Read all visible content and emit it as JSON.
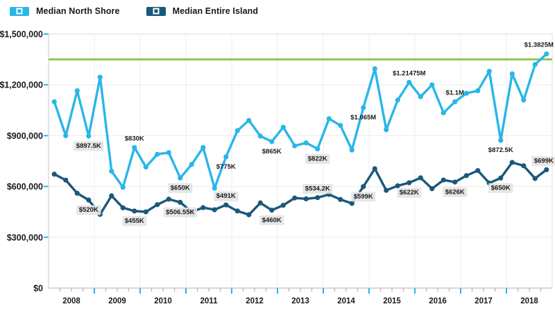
{
  "legend": {
    "items": [
      {
        "label": "Median North Shore",
        "color": "#29b6e8"
      },
      {
        "label": "Median Entire Island",
        "color": "#19587a"
      }
    ]
  },
  "chart_data": {
    "type": "line",
    "title": "",
    "x_axis": {
      "years": [
        "2008",
        "2009",
        "2010",
        "2011",
        "2012",
        "2013",
        "2014",
        "2015",
        "2016",
        "2017",
        "2018"
      ],
      "points_per_year": 4
    },
    "y_axis": {
      "min": 0,
      "max": 1500000,
      "ticks": [
        {
          "value": 0,
          "label": "$0"
        },
        {
          "value": 300000,
          "label": "$300,000"
        },
        {
          "value": 600000,
          "label": "$600,000"
        },
        {
          "value": 900000,
          "label": "$900,000"
        },
        {
          "value": 1200000,
          "label": "$1,200,000"
        },
        {
          "value": 1500000,
          "label": "$1,500,000"
        }
      ]
    },
    "reference_line": {
      "value": 1350000,
      "color": "#84c341"
    },
    "grid": true,
    "legend_position": "top-left",
    "series": [
      {
        "name": "Median North Shore",
        "color": "#29b6e8",
        "values": [
          1100000,
          900000,
          1165000,
          897500,
          1245000,
          690000,
          595000,
          830000,
          715000,
          790000,
          800000,
          650000,
          730000,
          830000,
          590000,
          775000,
          930000,
          990000,
          897500,
          865000,
          950000,
          840000,
          857500,
          822000,
          1000000,
          960000,
          815000,
          1065000,
          1295000,
          935000,
          1110000,
          1214750,
          1130000,
          1200000,
          1035000,
          1100000,
          1150000,
          1165000,
          1280000,
          872500,
          1265000,
          1110000,
          1320000,
          1382500
        ],
        "year_end_labels": [
          {
            "text": "$897.5K",
            "placement": "below",
            "chip": true
          },
          {
            "text": "$830K",
            "placement": "above",
            "chip": false
          },
          {
            "text": "$650K",
            "placement": "below",
            "chip": true
          },
          {
            "text": "$775K",
            "placement": "below",
            "chip": false
          },
          {
            "text": "$865K",
            "placement": "below",
            "chip": false
          },
          {
            "text": "$822K",
            "placement": "below",
            "chip": true
          },
          {
            "text": "$1.065M",
            "placement": "below",
            "chip": false
          },
          {
            "text": "$1.21475M",
            "placement": "above",
            "chip": false
          },
          {
            "text": "$1.1M",
            "placement": "above",
            "chip": false
          },
          {
            "text": "$872.5K",
            "placement": "below",
            "chip": false
          },
          {
            "text": "$1.3825M",
            "placement": "above",
            "chip": false
          }
        ]
      },
      {
        "name": "Median Entire Island",
        "color": "#19587a",
        "values": [
          672500,
          637500,
          560000,
          520000,
          435000,
          545000,
          474000,
          455000,
          450000,
          492500,
          525000,
          506550,
          450000,
          475000,
          462500,
          491000,
          455000,
          433000,
          503000,
          460000,
          489000,
          532000,
          527000,
          534200,
          553000,
          523000,
          500000,
          599000,
          705000,
          577000,
          604000,
          622000,
          651000,
          587000,
          638000,
          626000,
          664000,
          694000,
          620000,
          650000,
          742000,
          722000,
          647000,
          699000
        ],
        "year_end_labels": [
          {
            "text": "$520K",
            "placement": "below",
            "chip": true
          },
          {
            "text": "$455K",
            "placement": "below",
            "chip": true
          },
          {
            "text": "$506.55K",
            "placement": "below",
            "chip": true
          },
          {
            "text": "$491K",
            "placement": "above",
            "chip": true
          },
          {
            "text": "$460K",
            "placement": "below",
            "chip": true
          },
          {
            "text": "$534.2K",
            "placement": "above",
            "chip": true
          },
          {
            "text": "$599K",
            "placement": "below",
            "chip": true
          },
          {
            "text": "$622K",
            "placement": "below",
            "chip": true
          },
          {
            "text": "$626K",
            "placement": "below",
            "chip": true
          },
          {
            "text": "$650K",
            "placement": "below",
            "chip": true
          },
          {
            "text": "$699K",
            "placement": "above",
            "chip": true
          }
        ]
      }
    ],
    "colors": {
      "grid": "#ececec",
      "axis": "#c9c9c9",
      "frame": "#dcdcdc",
      "tick_blue": "#29b6e8",
      "tick_gray": "#b5b5b5",
      "chip_bg": "#e4e4e4",
      "text": "#1a1a1a"
    }
  }
}
